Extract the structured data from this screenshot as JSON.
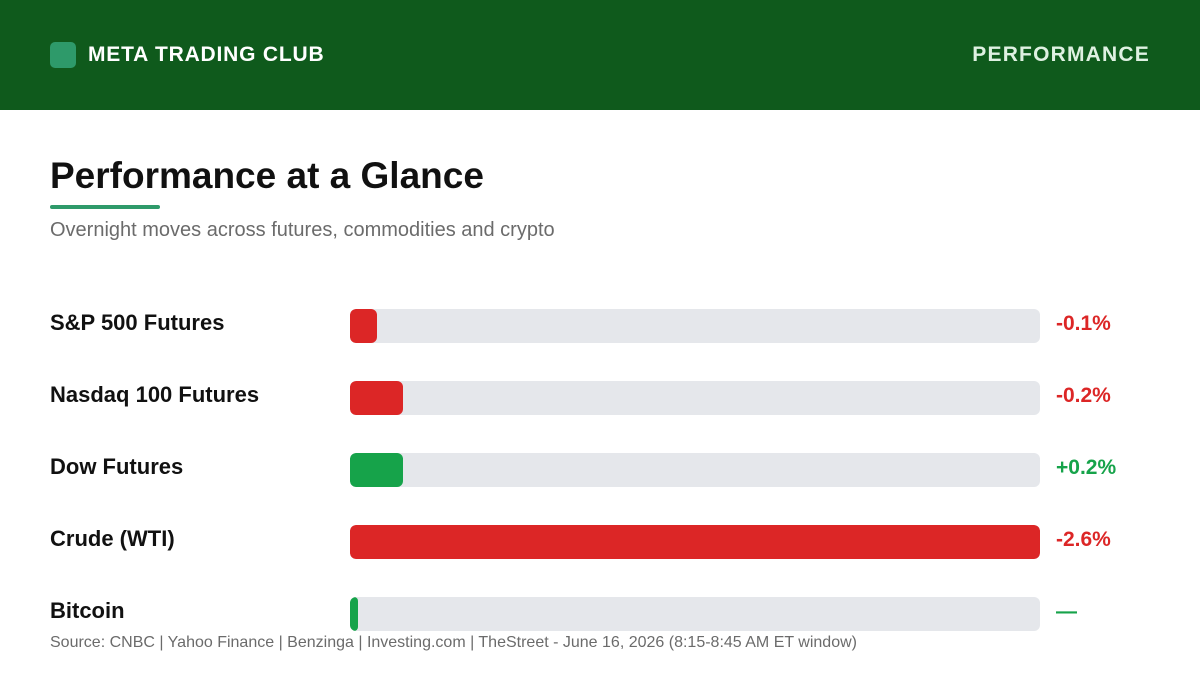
{
  "header": {
    "brand": "META TRADING CLUB",
    "section": "PERFORMANCE"
  },
  "title": "Performance at a Glance",
  "subtitle": "Overnight moves across futures, commodities and crypto",
  "colors": {
    "header_bg": "#0f5a1c",
    "accent": "#2e9a6a",
    "negative": "#dc2626",
    "positive": "#16a34a",
    "neutral": "#16a34a",
    "track": "#e5e7eb"
  },
  "chart_data": {
    "type": "bar",
    "categories": [
      "S&P 500 Futures",
      "Nasdaq 100 Futures",
      "Dow Futures",
      "Crude (WTI)",
      "Bitcoin"
    ],
    "values": [
      -0.1,
      -0.2,
      0.2,
      -2.6,
      0.0
    ],
    "value_labels": [
      "-0.1%",
      "-0.2%",
      "+0.2%",
      "-2.6%",
      "—"
    ],
    "max_abs": 2.6
  },
  "source": "Source: CNBC | Yahoo Finance | Benzinga | Investing.com | TheStreet - June 16, 2026 (8:15-8:45 AM ET window)"
}
